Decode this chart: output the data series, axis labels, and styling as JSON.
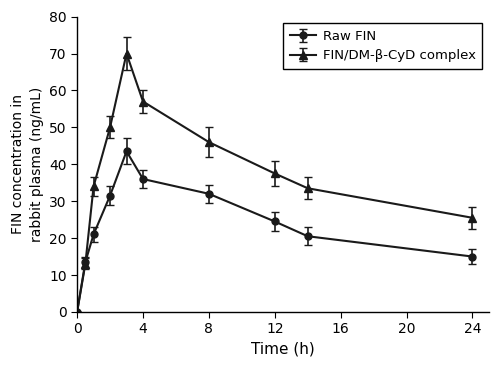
{
  "raw_fin": {
    "x": [
      0,
      0.5,
      1,
      2,
      3,
      4,
      8,
      12,
      14,
      24
    ],
    "y": [
      0,
      13.5,
      21.0,
      31.5,
      43.5,
      36.0,
      32.0,
      24.5,
      20.5,
      15.0
    ],
    "yerr": [
      0,
      1.5,
      2.0,
      2.5,
      3.5,
      2.5,
      2.5,
      2.5,
      2.5,
      2.0
    ]
  },
  "complex": {
    "x": [
      0,
      0.5,
      1,
      2,
      3,
      4,
      8,
      12,
      14,
      24
    ],
    "y": [
      0,
      13.0,
      34.0,
      50.0,
      70.0,
      57.0,
      46.0,
      37.5,
      33.5,
      25.5
    ],
    "yerr": [
      0,
      1.5,
      2.5,
      3.0,
      4.5,
      3.0,
      4.0,
      3.5,
      3.0,
      3.0
    ]
  },
  "xlabel": "Time (h)",
  "ylabel": "FIN concentration in\nrabbit plasma (ng/mL)",
  "xlim": [
    0,
    25
  ],
  "ylim": [
    0,
    80
  ],
  "xticks": [
    0,
    4,
    8,
    12,
    16,
    20,
    24
  ],
  "yticks": [
    0,
    10,
    20,
    30,
    40,
    50,
    60,
    70,
    80
  ],
  "legend_raw": "Raw FIN",
  "legend_complex": "FIN/DM-β-CyD complex",
  "line_color": "#1a1a1a",
  "background": "#ffffff"
}
